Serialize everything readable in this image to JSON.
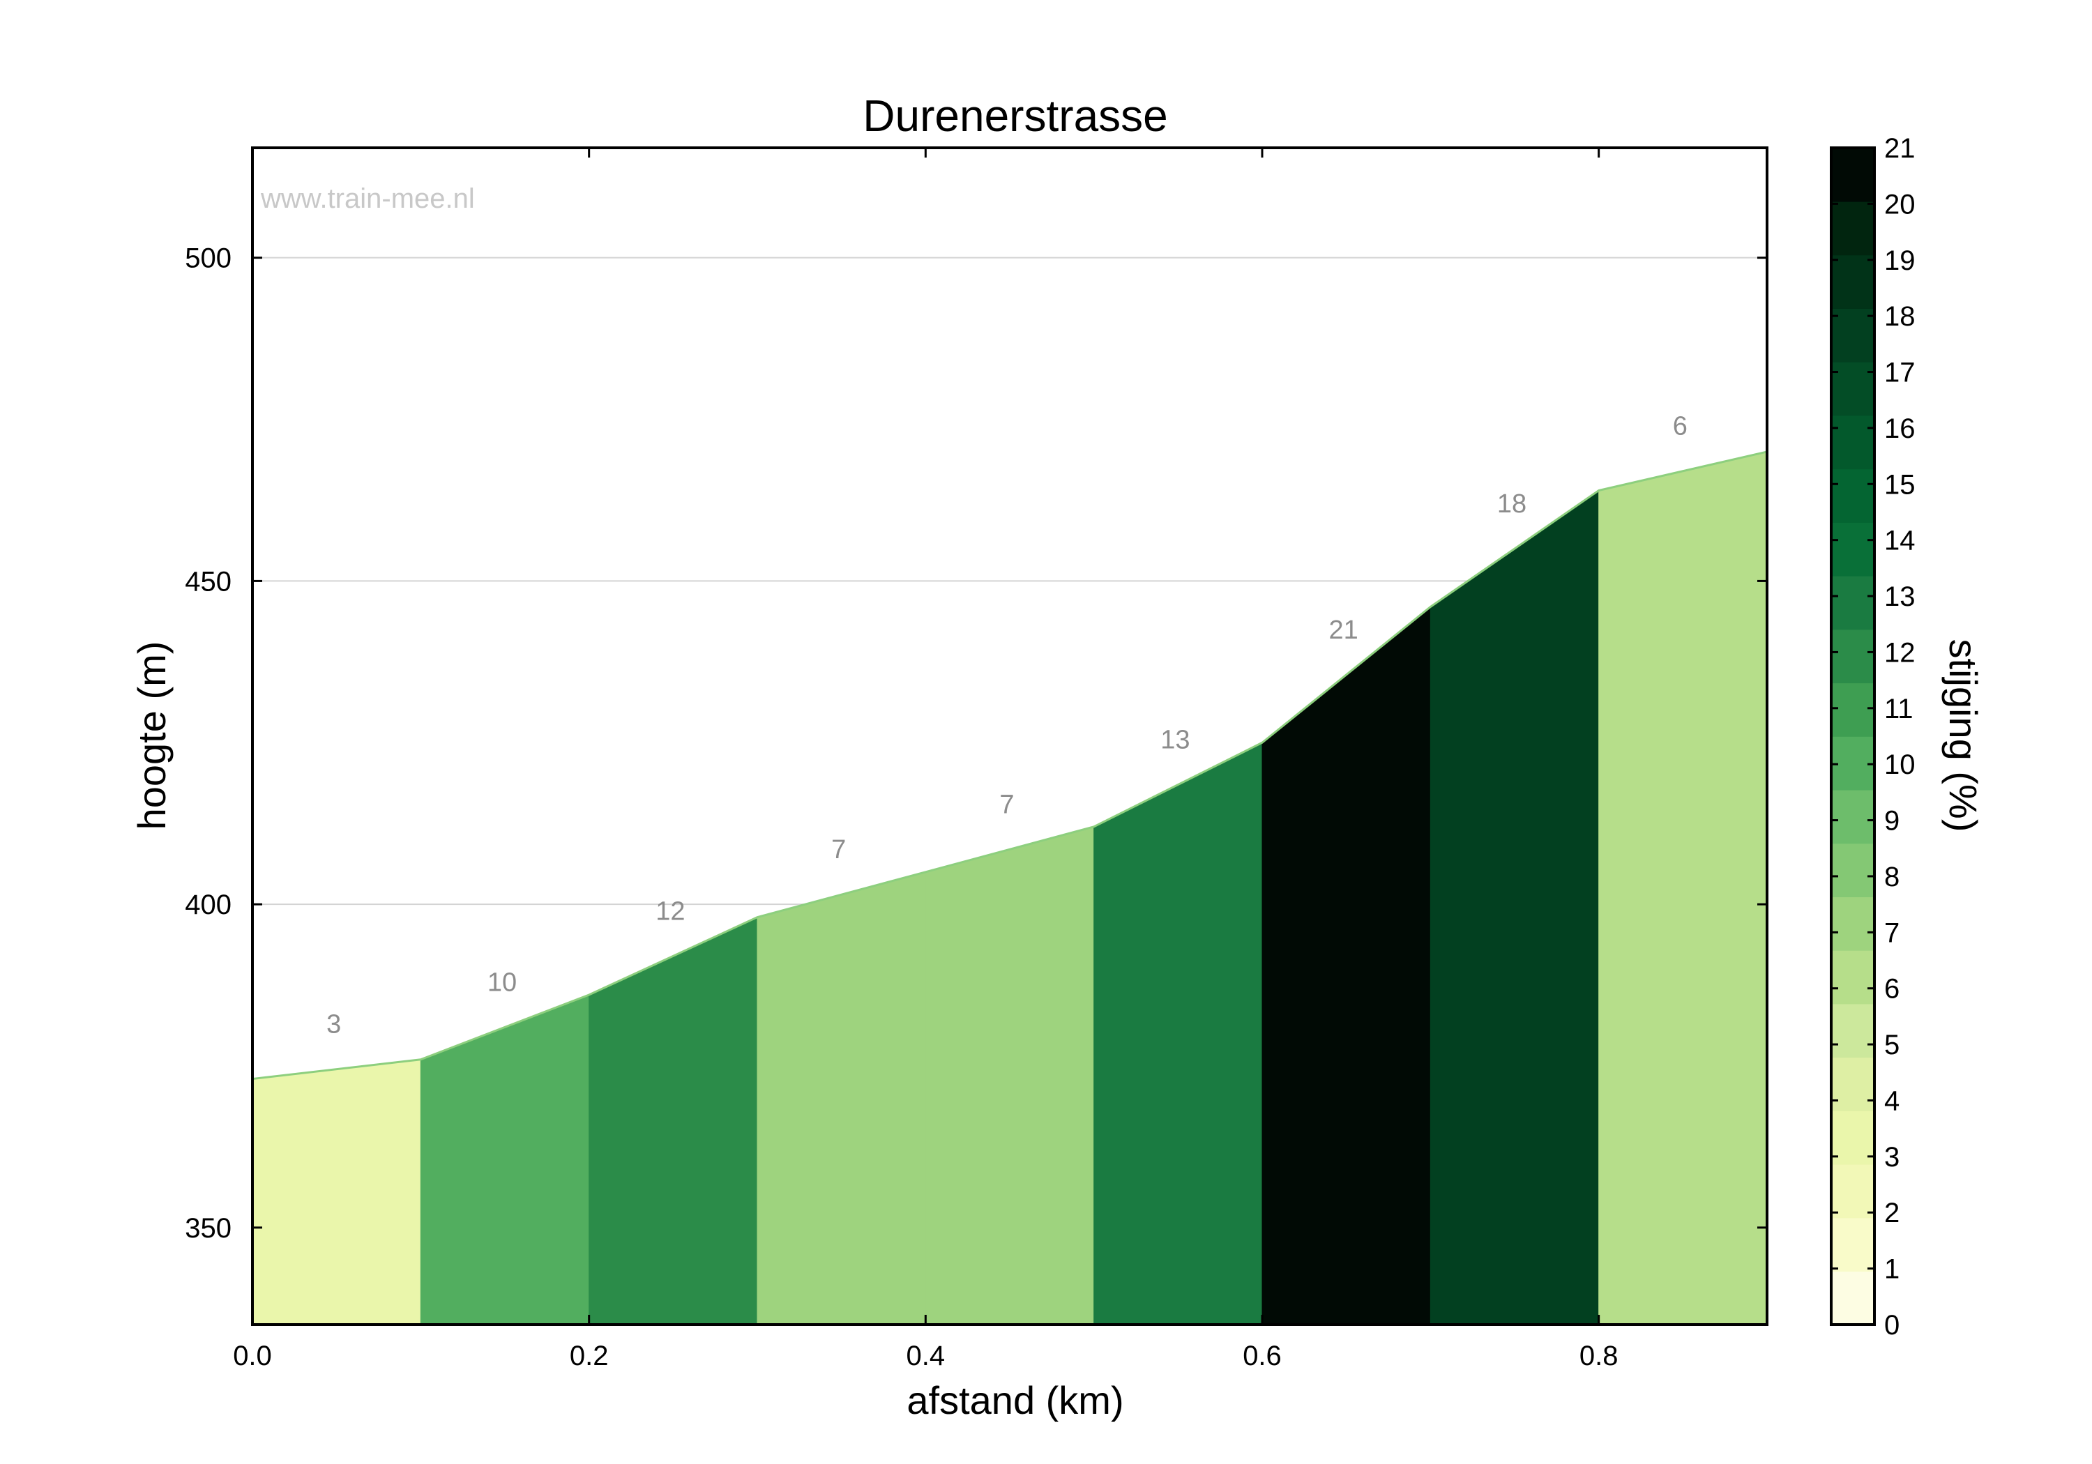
{
  "chart_data": {
    "type": "area",
    "title": "Durenerstrasse",
    "xlabel": "afstand (km)",
    "ylabel": "hoogte (m)",
    "watermark": "www.train-mee.nl",
    "xlim": [
      0.0,
      0.9
    ],
    "ylim": [
      335,
      517
    ],
    "x_ticks": [
      "0.0",
      "0.2",
      "0.4",
      "0.6",
      "0.8"
    ],
    "y_ticks": [
      "350",
      "400",
      "450",
      "500"
    ],
    "grid": "horizontal",
    "x": [
      0.0,
      0.1,
      0.2,
      0.3,
      0.4,
      0.5,
      0.6,
      0.7,
      0.8,
      0.9
    ],
    "elevation": [
      373,
      376,
      386,
      398,
      405,
      412,
      425,
      446,
      464,
      470
    ],
    "segments": [
      {
        "start": 0.0,
        "end": 0.1,
        "gradient": 3,
        "label": "3"
      },
      {
        "start": 0.1,
        "end": 0.2,
        "gradient": 10,
        "label": "10"
      },
      {
        "start": 0.2,
        "end": 0.3,
        "gradient": 12,
        "label": "12"
      },
      {
        "start": 0.3,
        "end": 0.4,
        "gradient": 7,
        "label": "7"
      },
      {
        "start": 0.4,
        "end": 0.5,
        "gradient": 7,
        "label": "7"
      },
      {
        "start": 0.5,
        "end": 0.6,
        "gradient": 13,
        "label": "13"
      },
      {
        "start": 0.6,
        "end": 0.7,
        "gradient": 21,
        "label": "21"
      },
      {
        "start": 0.7,
        "end": 0.8,
        "gradient": 18,
        "label": "18"
      },
      {
        "start": 0.8,
        "end": 0.9,
        "gradient": 6,
        "label": "6"
      }
    ],
    "colorbar": {
      "label": "stijging (%)",
      "min": 0,
      "max": 21,
      "ticks": [
        "0",
        "1",
        "2",
        "3",
        "4",
        "5",
        "6",
        "7",
        "8",
        "9",
        "10",
        "11",
        "12",
        "13",
        "14",
        "15",
        "16",
        "17",
        "18",
        "19",
        "20",
        "21"
      ],
      "colors": [
        "#fdfde3",
        "#f9fbc9",
        "#f2f8b7",
        "#eaf6ab",
        "#deefa4",
        "#cce89c",
        "#b6de8a",
        "#9ed37e",
        "#84c874",
        "#6dbd6b",
        "#52ae5f",
        "#3e9e52",
        "#2b8c49",
        "#1a7b41",
        "#097038",
        "#046532",
        "#03592c",
        "#034d26",
        "#024020",
        "#013318",
        "#01250f",
        "#010a05"
      ],
      "line_color": "#8dcf7e"
    }
  }
}
